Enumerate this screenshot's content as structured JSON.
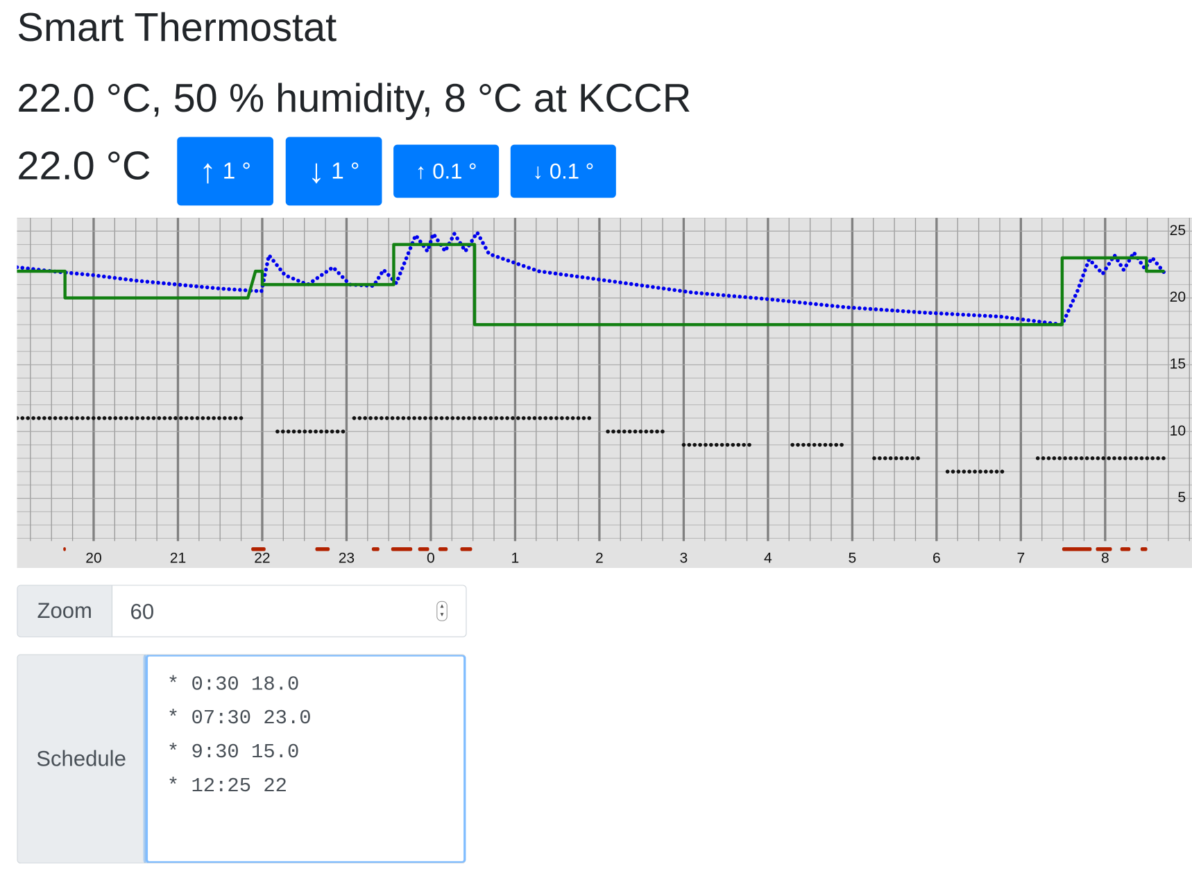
{
  "header": {
    "title": "Smart Thermostat"
  },
  "status": {
    "text": "22.0 °C, 50 % humidity, 8 °C at KCCR"
  },
  "setpoint": {
    "value": "22.0 °C",
    "buttons": [
      {
        "arrow": "↑",
        "label": "1 °"
      },
      {
        "arrow": "↓",
        "label": "1 °"
      },
      {
        "arrow": "↑",
        "label": "0.1 °"
      },
      {
        "arrow": "↓",
        "label": "0.1 °"
      }
    ]
  },
  "chart_data": {
    "type": "line",
    "xlim": [
      19.09,
      33.03
    ],
    "ylim": [
      1.8,
      26
    ],
    "xticks": [
      20,
      21,
      22,
      23,
      {
        "value": 24,
        "label": "0"
      },
      {
        "value": 25,
        "label": "1"
      },
      {
        "value": 26,
        "label": "2"
      },
      {
        "value": 27,
        "label": "3"
      },
      {
        "value": 28,
        "label": "4"
      },
      {
        "value": 29,
        "label": "5"
      },
      {
        "value": 30,
        "label": "6"
      },
      {
        "value": 31,
        "label": "7"
      },
      {
        "value": 32,
        "label": "8"
      }
    ],
    "yticks": [
      5,
      10,
      15,
      20,
      25
    ],
    "grid": true,
    "series": [
      {
        "color": "#0000ee",
        "style": "dots",
        "x": [
          19.09,
          19.5,
          20,
          20.5,
          21,
          21.5,
          21.99,
          22.08,
          22.27,
          22.54,
          22.84,
          23.04,
          23.32,
          23.44,
          23.59,
          23.82,
          23.96,
          24.03,
          24.17,
          24.28,
          24.41,
          24.55,
          24.69,
          25.28,
          26.2,
          27.11,
          28.02,
          28.93,
          29.85,
          30.76,
          31.49,
          31.67,
          31.81,
          31.97,
          32.11,
          32.22,
          32.34,
          32.47,
          32.56,
          32.7
        ],
        "values": [
          22.3,
          22.0,
          21.7,
          21.3,
          21.0,
          20.7,
          20.5,
          23.2,
          21.7,
          21.0,
          22.3,
          21.0,
          20.9,
          22.1,
          21.1,
          24.7,
          23.5,
          24.8,
          23.5,
          24.8,
          23.5,
          24.9,
          23.3,
          22.0,
          21.2,
          20.4,
          19.9,
          19.3,
          18.9,
          18.6,
          18.0,
          20.5,
          22.9,
          21.8,
          23.2,
          22.1,
          23.4,
          22.2,
          23.0,
          21.9
        ]
      },
      {
        "color": "#128012",
        "style": "solid",
        "x": [
          19.09,
          19.66,
          19.66,
          21.83,
          21.92,
          22.0,
          22.0,
          23.56,
          23.56,
          24.52,
          24.52,
          31.49,
          31.49,
          32.49,
          32.49,
          32.69
        ],
        "values": [
          22,
          22,
          20,
          20,
          22,
          22,
          21,
          21,
          24,
          24,
          18,
          18,
          23,
          23,
          22,
          22
        ]
      },
      {
        "color": "#111111",
        "style": "dots",
        "x": [
          19.09,
          21.8,
          21.9,
          22.18,
          23.0,
          23.05,
          23.09,
          25.9,
          26.0,
          26.1,
          26.8,
          26.9,
          27.0,
          27.8,
          28.1,
          28.29,
          28.9,
          29.1,
          29.26,
          29.8,
          30.0,
          30.13,
          30.8,
          31.0,
          31.2,
          32.7
        ],
        "values": [
          11,
          11,
          null,
          10,
          10,
          null,
          11,
          11,
          null,
          10,
          10,
          null,
          9,
          9,
          null,
          9,
          9,
          null,
          8,
          8,
          null,
          7,
          7,
          null,
          8,
          8
        ]
      }
    ],
    "heating": {
      "color": "#b22200",
      "intervals": [
        [
          19.64,
          19.67
        ],
        [
          21.87,
          22.04
        ],
        [
          22.63,
          22.8
        ],
        [
          23.3,
          23.39
        ],
        [
          23.53,
          23.78
        ],
        [
          23.85,
          23.98
        ],
        [
          24.09,
          24.2
        ],
        [
          24.35,
          24.49
        ],
        [
          31.49,
          31.84
        ],
        [
          31.89,
          32.08
        ],
        [
          32.18,
          32.3
        ],
        [
          32.42,
          32.5
        ]
      ]
    }
  },
  "zoom": {
    "label": "Zoom",
    "value": "60"
  },
  "schedule": {
    "label": "Schedule",
    "lines": [
      "* 0:30 18.0",
      "* 07:30 23.0",
      "* 9:30 15.0",
      "* 12:25 22"
    ]
  }
}
